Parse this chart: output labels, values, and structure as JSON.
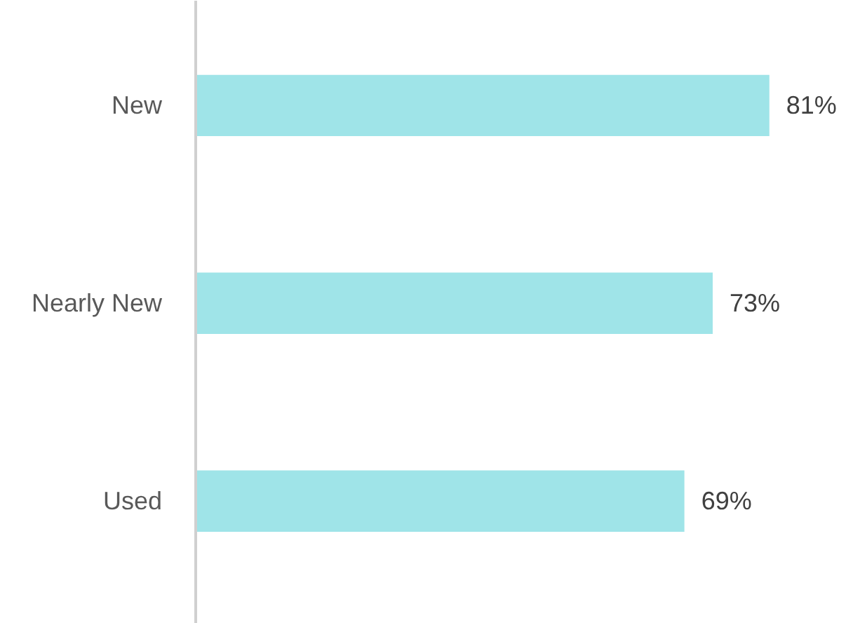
{
  "chart_data": {
    "type": "bar",
    "orientation": "horizontal",
    "categories": [
      "New",
      "Nearly New",
      "Used"
    ],
    "values": [
      81,
      73,
      69
    ],
    "value_labels": [
      "81%",
      "73%",
      "69%"
    ],
    "color": "#9fe4e8",
    "grid": false
  }
}
